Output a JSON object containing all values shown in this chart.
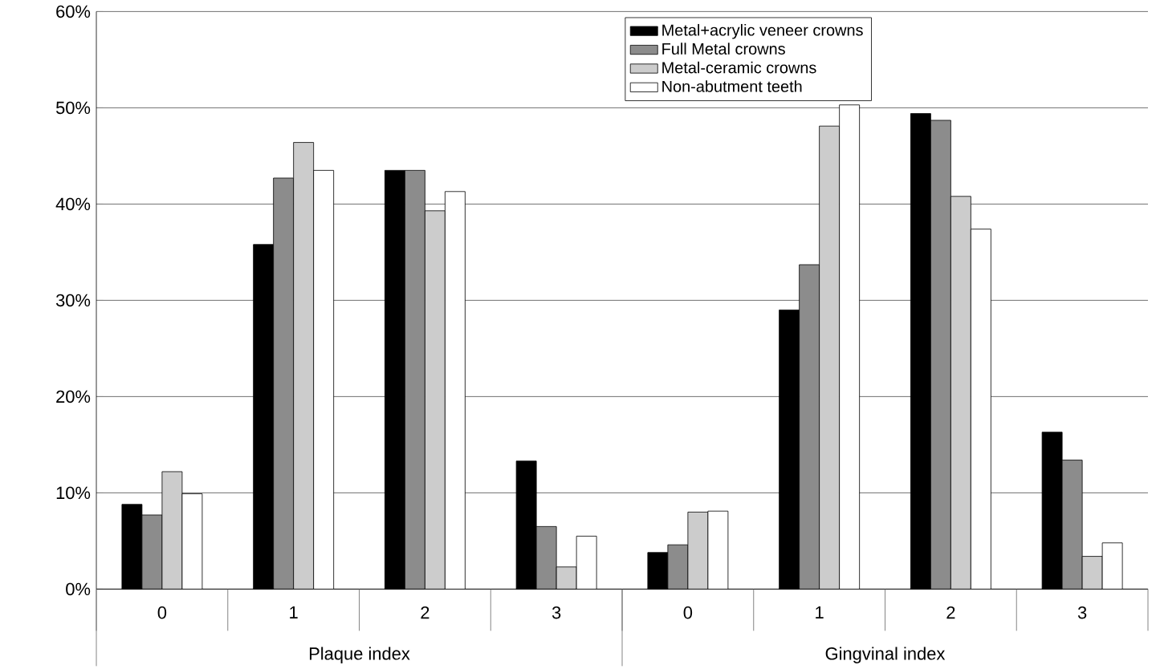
{
  "chart_data": {
    "type": "bar",
    "categories": [
      "0",
      "1",
      "2",
      "3",
      "0",
      "1",
      "2",
      "3"
    ],
    "series": [
      {
        "name": "Metal+acrylic veneer crowns",
        "color": "#000000",
        "values": [
          8.8,
          35.8,
          43.5,
          13.3,
          3.8,
          29.0,
          49.4,
          16.3
        ]
      },
      {
        "name": "Full Metal crowns",
        "color": "#8c8c8c",
        "values": [
          7.7,
          42.7,
          43.5,
          6.5,
          4.6,
          33.7,
          48.7,
          13.4
        ]
      },
      {
        "name": "Metal-ceramic crowns",
        "color": "#cccccc",
        "values": [
          12.2,
          46.4,
          39.3,
          2.3,
          8.0,
          48.1,
          40.8,
          3.4
        ]
      },
      {
        "name": "Non-abutment teeth",
        "color": "#ffffff",
        "values": [
          9.9,
          43.5,
          41.3,
          5.5,
          8.1,
          50.3,
          37.4,
          4.8
        ]
      }
    ],
    "ylim": [
      0,
      60
    ],
    "yticks": [
      {
        "value": 0,
        "label": "0%"
      },
      {
        "value": 10,
        "label": "10%"
      },
      {
        "value": 20,
        "label": "20%"
      },
      {
        "value": 30,
        "label": "30%"
      },
      {
        "value": 40,
        "label": "40%"
      },
      {
        "value": 50,
        "label": "50%"
      },
      {
        "value": 60,
        "label": "60%"
      }
    ],
    "annotations": [
      "Plaque index",
      "Gingvinal index"
    ],
    "grid": "y",
    "legend": "top"
  }
}
